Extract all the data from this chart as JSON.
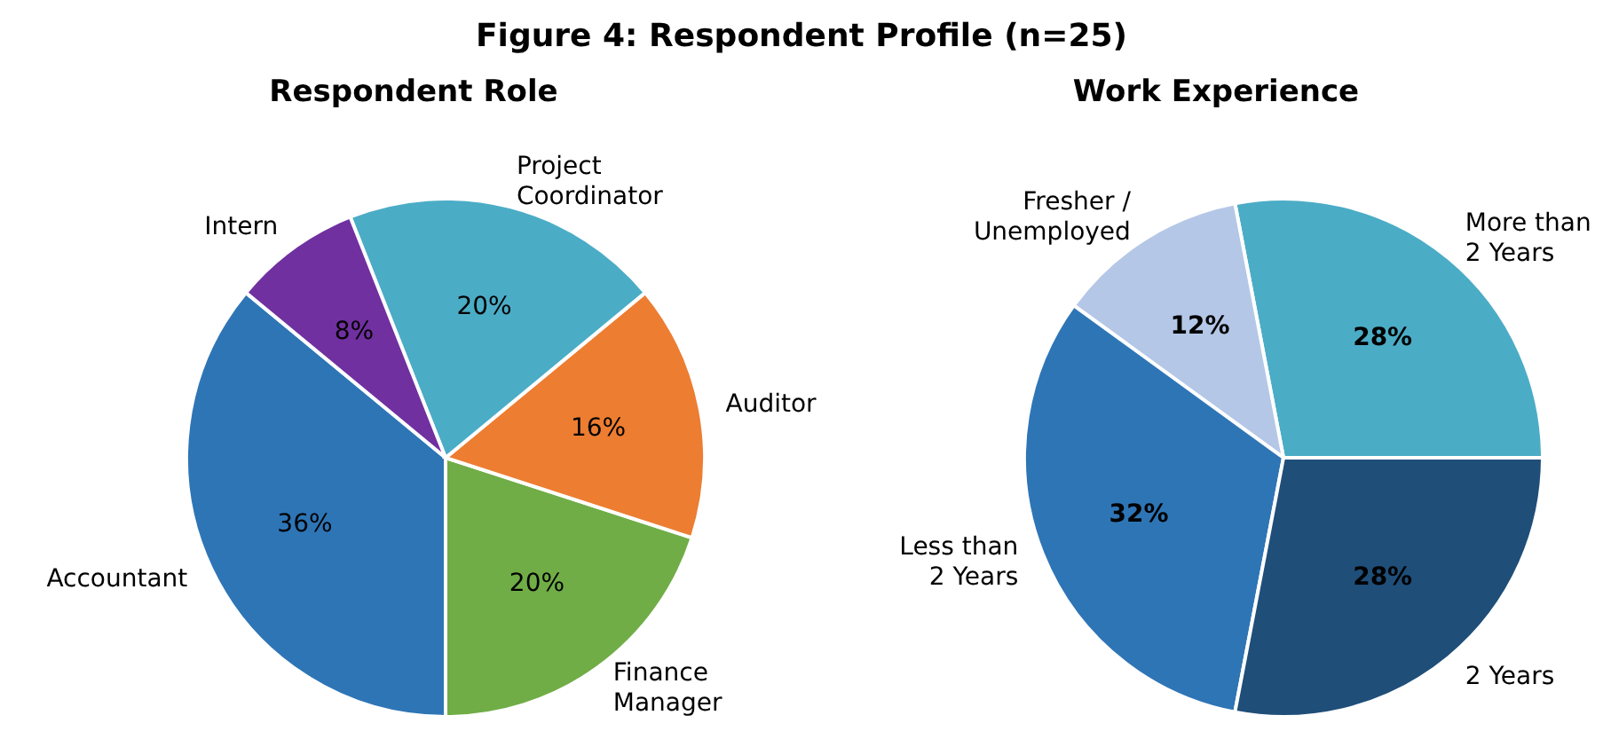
{
  "chart_data": [
    {
      "type": "pie",
      "title": "Respondent Role",
      "annotations": [
        "Figure 4: Respondent Profile (n=25)"
      ],
      "categories": [
        "Accountant",
        "Finance Manager",
        "Auditor",
        "Project Coordinator",
        "Intern"
      ],
      "values": [
        36,
        20,
        16,
        20,
        8
      ],
      "colors": [
        "#2e75b6",
        "#70ad47",
        "#ed7d31",
        "#4bacc6",
        "#7030a0"
      ],
      "value_labels": [
        "36%",
        "20%",
        "16%",
        "20%",
        "8%"
      ]
    },
    {
      "type": "pie",
      "title": "Work Experience",
      "categories": [
        "More than 2 Years",
        "Fresher / Unemployed",
        "Less than 2 Years",
        "2 Years"
      ],
      "values": [
        28,
        12,
        32,
        28
      ],
      "colors": [
        "#4bacc6",
        "#b4c7e7",
        "#2e75b6",
        "#1f4e79"
      ],
      "value_labels": [
        "28%",
        "12%",
        "32%",
        "28%"
      ]
    }
  ]
}
